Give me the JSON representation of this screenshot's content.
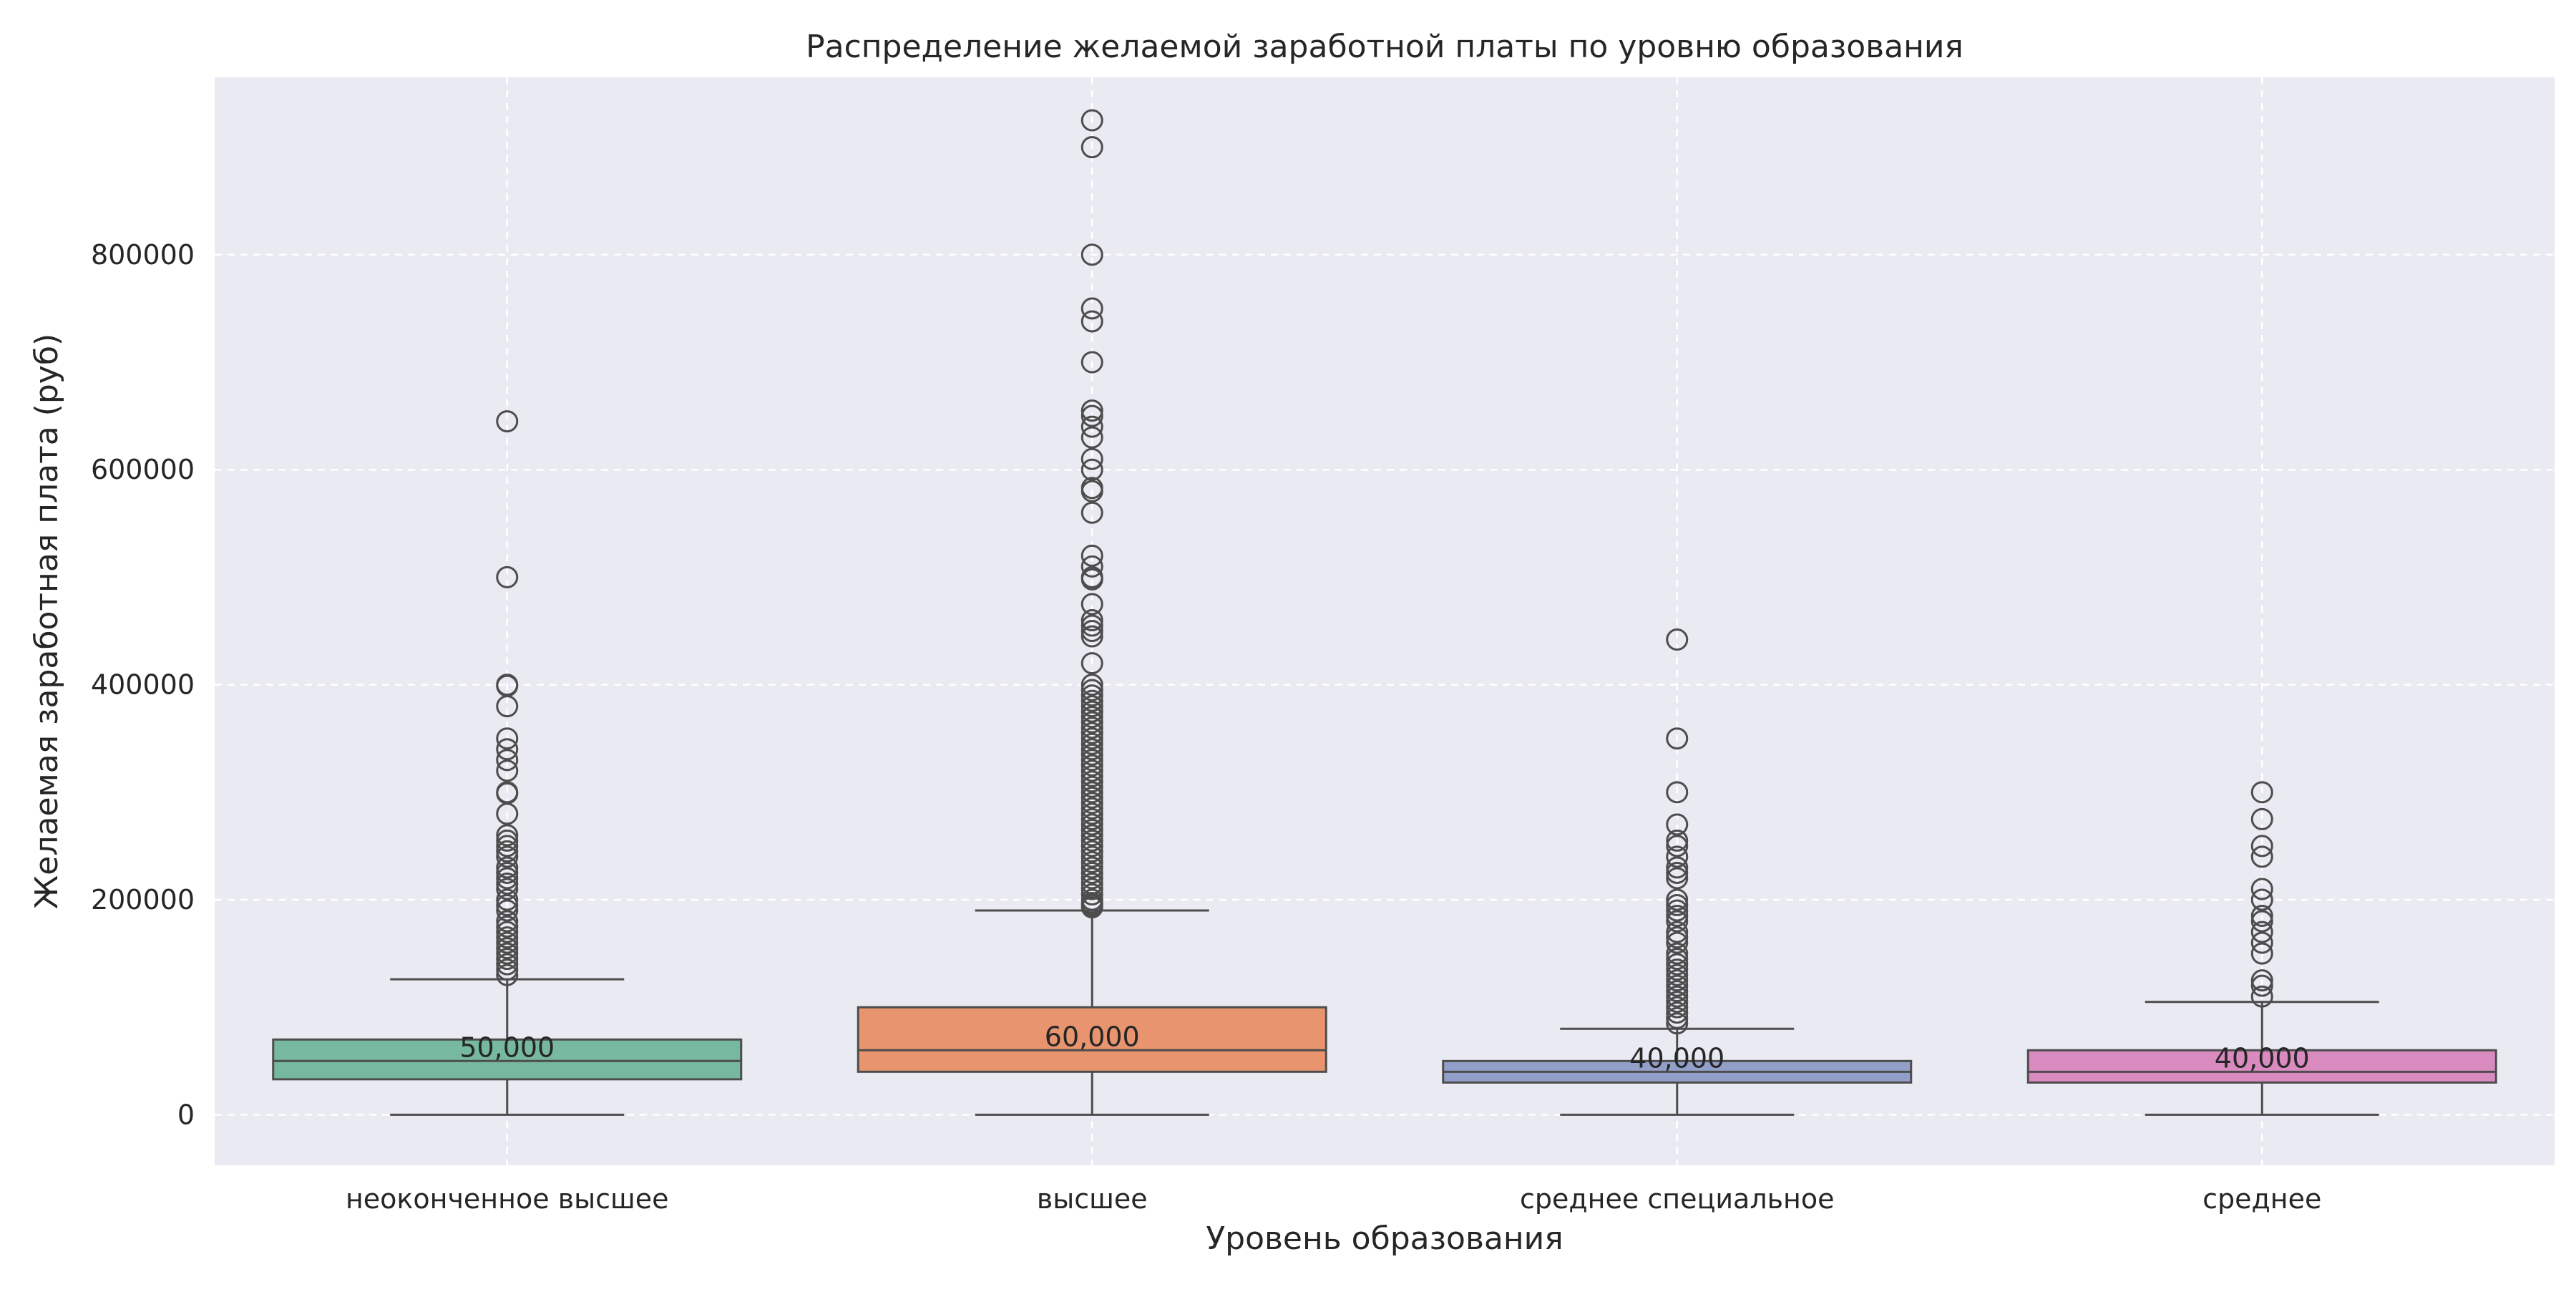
{
  "chart_data": {
    "type": "box",
    "title": "Распределение желаемой заработной платы по уровню образования",
    "xlabel": "Уровень образования",
    "ylabel": "Желаемая заработная плата (руб)",
    "ylim": [
      -47000,
      965000
    ],
    "yticks": [
      0,
      200000,
      400000,
      600000,
      800000
    ],
    "ytick_labels": [
      "0",
      "200000",
      "400000",
      "600000",
      "800000"
    ],
    "grid": true,
    "categories": [
      "неоконченное высшее",
      "высшее",
      "среднее специальное",
      "среднее"
    ],
    "series": [
      {
        "category": "неоконченное высшее",
        "color": "#77b99f",
        "whisker_low": 0,
        "q1": 33000,
        "median": 50000,
        "q3": 70000,
        "whisker_high": 126000,
        "median_label": "50,000",
        "outliers": [
          645000,
          500000,
          400000,
          399000,
          380000,
          350000,
          340000,
          330000,
          320000,
          300000,
          299000,
          280000,
          260000,
          255000,
          250000,
          245000,
          240000,
          230000,
          225000,
          220000,
          215000,
          210000,
          200000,
          195000,
          190000,
          180000,
          175000,
          170000,
          165000,
          160000,
          155000,
          150000,
          145000,
          140000,
          135000,
          130000
        ]
      },
      {
        "category": "высшее",
        "color": "#e8956f",
        "whisker_low": 0,
        "q1": 40000,
        "median": 60000,
        "q3": 100000,
        "whisker_high": 190000,
        "median_label": "60,000",
        "outliers": [
          925000,
          900000,
          800000,
          750000,
          738000,
          700000,
          655000,
          650000,
          640000,
          630000,
          610000,
          600000,
          583000,
          580000,
          560000,
          520000,
          510000,
          500000,
          498000,
          475000,
          460000,
          455000,
          450000,
          445000,
          420000,
          400000,
          395000,
          390000,
          385000,
          380000,
          375000,
          370000,
          365000,
          360000,
          355000,
          350000,
          345000,
          340000,
          335000,
          330000,
          325000,
          320000,
          315000,
          310000,
          305000,
          300000,
          295000,
          290000,
          285000,
          280000,
          275000,
          270000,
          265000,
          260000,
          255000,
          250000,
          245000,
          240000,
          235000,
          230000,
          225000,
          220000,
          215000,
          210000,
          205000,
          200000,
          197000,
          195000,
          193000
        ]
      },
      {
        "category": "среднее специальное",
        "color": "#929fc8",
        "whisker_low": 0,
        "q1": 30000,
        "median": 40000,
        "q3": 50000,
        "whisker_high": 80000,
        "median_label": "40,000",
        "outliers": [
          442000,
          350000,
          300000,
          270000,
          255000,
          250000,
          240000,
          230000,
          225000,
          220000,
          200000,
          195000,
          190000,
          185000,
          180000,
          170000,
          165000,
          160000,
          150000,
          145000,
          140000,
          135000,
          130000,
          125000,
          120000,
          115000,
          110000,
          105000,
          100000,
          95000,
          90000,
          85000
        ]
      },
      {
        "category": "среднее",
        "color": "#d98bc0",
        "whisker_low": 0,
        "q1": 30000,
        "median": 40000,
        "q3": 60000,
        "whisker_high": 105000,
        "median_label": "40,000",
        "outliers": [
          300000,
          275000,
          250000,
          240000,
          210000,
          200000,
          185000,
          180000,
          170000,
          160000,
          150000,
          125000,
          120000,
          110000
        ]
      }
    ]
  }
}
